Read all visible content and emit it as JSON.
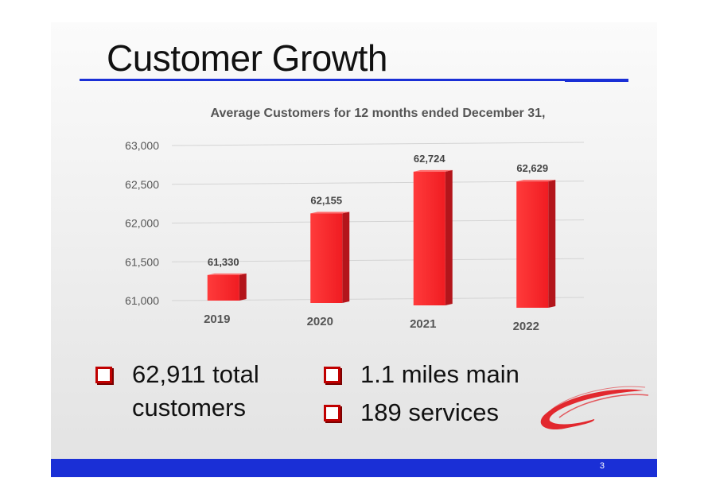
{
  "slide": {
    "title": "Customer Growth",
    "page_number": "3"
  },
  "bullets_left": [
    {
      "text": "62,911 total\ncustomers"
    }
  ],
  "bullets_right": [
    {
      "text": "1.1 miles main"
    },
    {
      "text": "189 services"
    }
  ],
  "colors": {
    "accent_blue": "#1a2fd6",
    "bar_red": "#f5222d",
    "bullet_red": "#c00000"
  },
  "chart_data": {
    "type": "bar",
    "title": "Average Customers for 12 months ended December 31,",
    "categories": [
      "2019",
      "2020",
      "2021",
      "2022"
    ],
    "values": [
      61330,
      62155,
      62724,
      62629
    ],
    "data_labels": [
      "61,330",
      "62,155",
      "62,724",
      "62,629"
    ],
    "y_ticks": [
      61000,
      61500,
      62000,
      62500,
      63000
    ],
    "y_tick_labels": [
      "61,000",
      "61,500",
      "62,000",
      "62,500",
      "63,000"
    ],
    "ylim": [
      61000,
      63000
    ],
    "xlabel": "",
    "ylabel": "",
    "grid": true
  }
}
